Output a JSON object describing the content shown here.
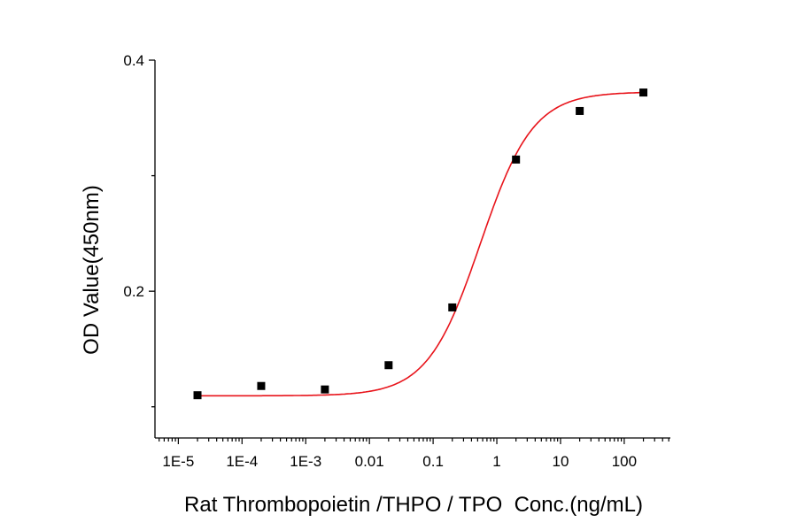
{
  "chart_data": {
    "type": "scatter",
    "title": "",
    "xlabel": "Rat Thrombopoietin /THPO / TPO  Conc.(ng/mL)",
    "ylabel": "OD Value(450nm)",
    "xscale": "log",
    "xlim": [
      4.3e-06,
      530
    ],
    "ylim": [
      0.073,
      0.4
    ],
    "xticks": [
      1e-05,
      0.0001,
      0.001,
      0.01,
      0.1,
      1,
      10,
      100
    ],
    "xtick_labels": [
      "1E-5",
      "1E-4",
      "1E-3",
      "0.01",
      "0.1",
      "1",
      "10",
      "100"
    ],
    "yticks_major": [
      0.2,
      0.4
    ],
    "ytick_labels": [
      "0.2",
      "0.4"
    ],
    "yticks_minor": [
      0.1,
      0.3
    ],
    "grid": false,
    "series": [
      {
        "marker": "square",
        "color": "#000000",
        "x": [
          2e-05,
          0.0002,
          0.002,
          0.02,
          0.2,
          2,
          20,
          200
        ],
        "y": [
          0.11,
          0.118,
          0.115,
          0.136,
          0.186,
          0.314,
          0.356,
          0.372
        ]
      }
    ],
    "fit": {
      "type": "4PL sigmoid",
      "color": "#e8141b"
    }
  }
}
